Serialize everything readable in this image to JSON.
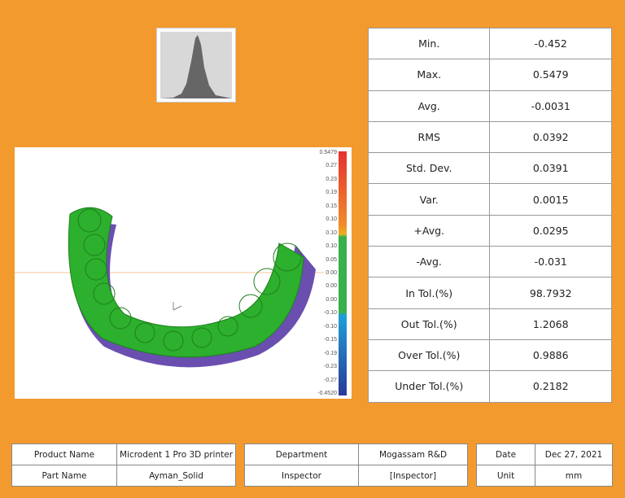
{
  "histogram": {
    "icon": "histogram-chart"
  },
  "viewer": {
    "colors": {
      "green": "#2DB02D",
      "purple": "#6A4FB0"
    },
    "scale_labels": [
      "0.5479",
      "0.27",
      "0.23",
      "0.19",
      "0.15",
      "0.10",
      "0.10",
      "0.10",
      "0.05",
      "0.00",
      "0.00",
      "0.00",
      "-0.10",
      "-0.10",
      "-0.15",
      "-0.19",
      "-0.23",
      "-0.27",
      "-0.4520"
    ]
  },
  "stats": [
    {
      "label": "Min.",
      "value": "-0.452"
    },
    {
      "label": "Max.",
      "value": "0.5479"
    },
    {
      "label": "Avg.",
      "value": "-0.0031"
    },
    {
      "label": "RMS",
      "value": "0.0392"
    },
    {
      "label": "Std. Dev.",
      "value": "0.0391"
    },
    {
      "label": "Var.",
      "value": "0.0015"
    },
    {
      "label": "+Avg.",
      "value": "0.0295"
    },
    {
      "label": "-Avg.",
      "value": "-0.031"
    },
    {
      "label": "In Tol.(%)",
      "value": "98.7932"
    },
    {
      "label": "Out Tol.(%)",
      "value": "1.2068"
    },
    {
      "label": "Over Tol.(%)",
      "value": "0.9886"
    },
    {
      "label": "Under Tol.(%)",
      "value": "0.2182"
    }
  ],
  "info": {
    "product_name_label": "Product Name",
    "product_name": "Microdent 1 Pro 3D printer",
    "part_name_label": "Part Name",
    "part_name": "Ayman_Solid",
    "department_label": "Department",
    "department": "Mogassam R&D",
    "inspector_label": "Inspector",
    "inspector": "[Inspector]",
    "date_label": "Date",
    "date": "Dec 27, 2021",
    "unit_label": "Unit",
    "unit": "mm"
  }
}
